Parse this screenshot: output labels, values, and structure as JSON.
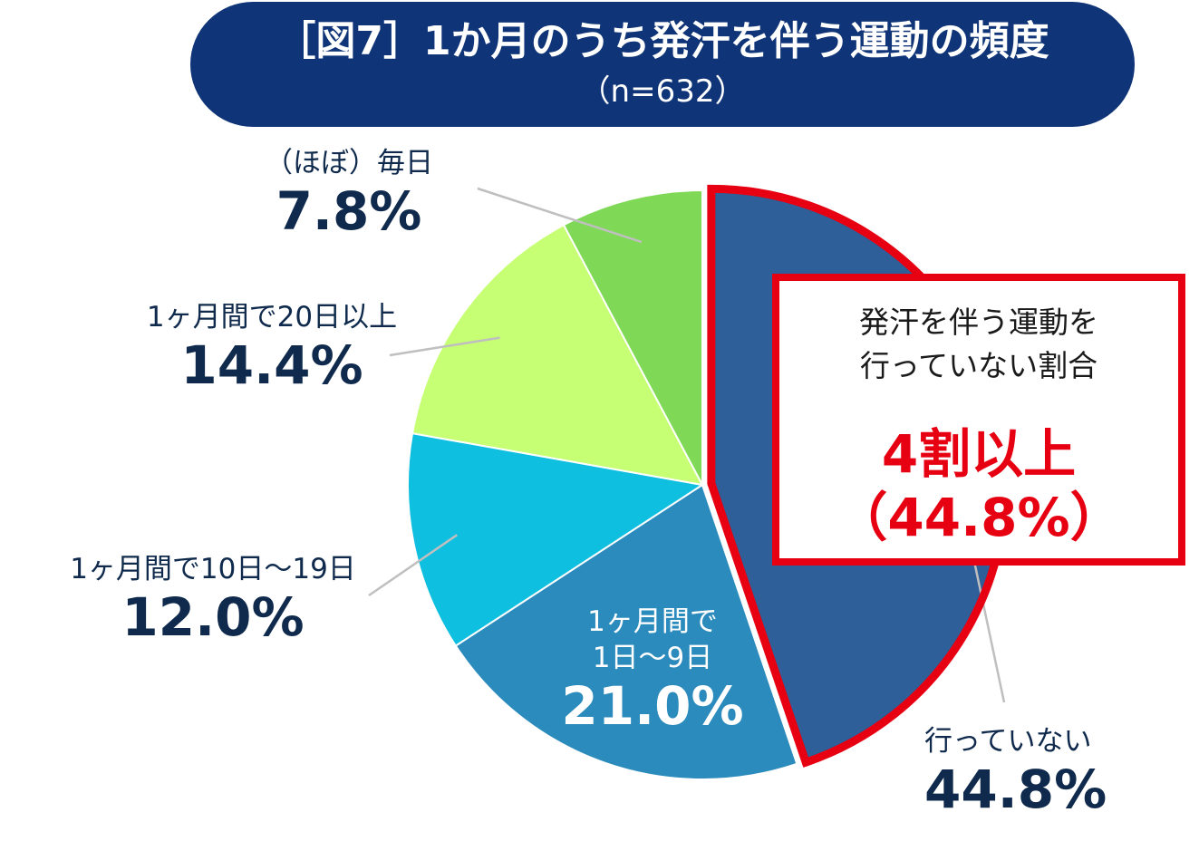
{
  "title": {
    "main": "［図7］1か月のうち発汗を伴う運動の頻度",
    "sub": "（n=632）"
  },
  "chart_data": {
    "type": "pie",
    "title": "［図7］1か月のうち発汗を伴う運動の頻度",
    "subtitle": "（n=632）",
    "slices": [
      {
        "label": "行っていない",
        "label_lines": [
          "行っていない"
        ],
        "value": 44.8,
        "display": "44.8%",
        "color": "#2e5f98",
        "highlight": true
      },
      {
        "label": "1ヶ月間で1日～9日",
        "label_lines": [
          "1ヶ月間で",
          "1日～9日"
        ],
        "value": 21.0,
        "display": "21.0%",
        "color": "#2b8bbd"
      },
      {
        "label": "1ヶ月間で10日～19日",
        "label_lines": [
          "1ヶ月間で10日～19日"
        ],
        "value": 12.0,
        "display": "12.0%",
        "color": "#0fbfe0"
      },
      {
        "label": "1ヶ月間で20日以上",
        "label_lines": [
          "1ヶ月間で20日以上"
        ],
        "value": 14.4,
        "display": "14.4%",
        "color": "#c6ff73"
      },
      {
        "label": "（ほぼ）毎日",
        "label_lines": [
          "（ほぼ）毎日"
        ],
        "value": 7.8,
        "display": "7.8%",
        "color": "#7fd957"
      }
    ],
    "highlight_color": "#e60012"
  },
  "callout": {
    "line1": "発汗を伴う運動を",
    "line2": "行っていない割合",
    "big1": "4割以上",
    "big2": "（44.8%）"
  }
}
